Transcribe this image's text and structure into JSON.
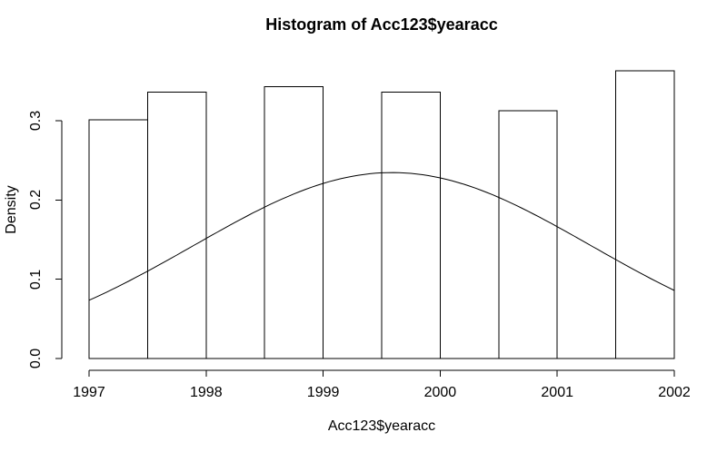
{
  "figure": {
    "background": "#ffffff",
    "foreground": "#000000"
  },
  "chart_data": {
    "type": "bar",
    "subtype": "histogram-with-density-curve",
    "title": "Histogram of Acc123$yearacc",
    "xlabel": "Acc123$yearacc",
    "ylabel": "Density",
    "x_ticks": [
      1997,
      1998,
      1999,
      2000,
      2001,
      2002
    ],
    "x_tick_labels": [
      "1997",
      "1998",
      "1999",
      "2000",
      "2001",
      "2002"
    ],
    "y_ticks": [
      0,
      0.1,
      0.2,
      0.3
    ],
    "y_tick_labels": [
      "0.0",
      "0.1",
      "0.2",
      "0.3"
    ],
    "xlim": [
      1997,
      2002
    ],
    "ylim": [
      0,
      0.378
    ],
    "grid": false,
    "legend": null,
    "bar_fill": "#ffffff",
    "bar_border": "#000000",
    "curve_color": "#000000",
    "bin_width": 0.5,
    "bins": [
      {
        "from": 1997.0,
        "to": 1997.5,
        "density": 0.301
      },
      {
        "from": 1997.5,
        "to": 1998.0,
        "density": 0.336
      },
      {
        "from": 1998.0,
        "to": 1998.5,
        "density": 0.0
      },
      {
        "from": 1998.5,
        "to": 1999.0,
        "density": 0.343
      },
      {
        "from": 1999.0,
        "to": 1999.5,
        "density": 0.0
      },
      {
        "from": 1999.5,
        "to": 2000.0,
        "density": 0.336
      },
      {
        "from": 2000.0,
        "to": 2000.5,
        "density": 0.0
      },
      {
        "from": 2000.5,
        "to": 2001.0,
        "density": 0.313
      },
      {
        "from": 2001.0,
        "to": 2001.5,
        "density": 0.0
      },
      {
        "from": 2001.5,
        "to": 2002.0,
        "density": 0.363
      }
    ],
    "curve": {
      "shape": "normal-density",
      "mean": 1999.59,
      "sd": 1.7,
      "x_range": [
        1997,
        2002
      ],
      "peak_density": 0.2344,
      "points": [
        [
          1997.0,
          0.0735
        ],
        [
          1997.25,
          0.091
        ],
        [
          1997.5,
          0.1102
        ],
        [
          1997.75,
          0.1306
        ],
        [
          1998.0,
          0.1515
        ],
        [
          1998.25,
          0.172
        ],
        [
          1998.5,
          0.1911
        ],
        [
          1998.75,
          0.2077
        ],
        [
          1999.0,
          0.221
        ],
        [
          1999.25,
          0.23
        ],
        [
          1999.5,
          0.2344
        ],
        [
          1999.75,
          0.2336
        ],
        [
          2000.0,
          0.228
        ],
        [
          2000.25,
          0.2176
        ],
        [
          2000.5,
          0.2034
        ],
        [
          2000.75,
          0.1859
        ],
        [
          2001.0,
          0.1664
        ],
        [
          2001.25,
          0.1457
        ],
        [
          2001.5,
          0.1249
        ],
        [
          2001.75,
          0.1047
        ],
        [
          2002.0,
          0.0859
        ]
      ]
    }
  }
}
